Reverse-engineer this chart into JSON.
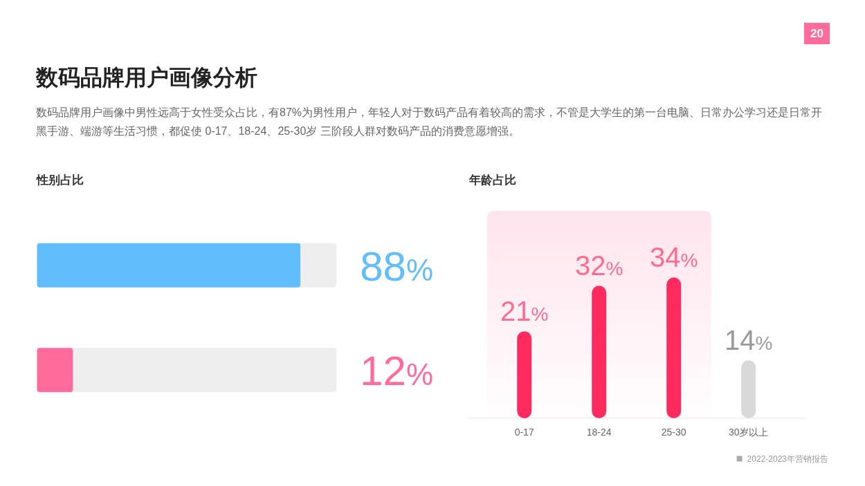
{
  "chart_data": [
    {
      "type": "other",
      "title": "数码品牌用户画像分析",
      "subtitle": "数码品牌用户画像中男性远高于女性受众占比，有87%为男性用户，年轻人对于数码产品有着较高的需求，不管是大学生的第一台电脑、日常办公学习还是日常开黑手游、端游等生活习惯，都促使 0-17、18-24、25-30岁 三阶段人群对数码产品的消费意愿增强。",
      "annotations": [
        "20"
      ]
    },
    {
      "type": "bar",
      "title": "性别占比",
      "orientation": "horizontal",
      "categories": [
        null,
        null
      ],
      "values": [
        88,
        12
      ],
      "colors": [
        "#62bdfd",
        "#ff6b9a"
      ],
      "value_labels": [
        "88%",
        "12%"
      ],
      "xlim": [
        0,
        100
      ]
    },
    {
      "type": "bar",
      "title": "年龄占比",
      "categories": [
        "0-17",
        "18-24",
        "25-30",
        "30岁以上"
      ],
      "values": [
        21,
        32,
        34,
        14
      ],
      "colors": [
        "#ff2b5e",
        "#ff2b5e",
        "#ff2b5e",
        "#d9d9d9"
      ],
      "value_labels": [
        "21%",
        "32%",
        "34%",
        "14%"
      ],
      "tick_labels": "x",
      "bands": [
        {
          "axis": "x",
          "from": "0-17",
          "to": "25-30",
          "color": "#ffe4ec"
        }
      ],
      "annotations": [
        "2022-2023年营销报告"
      ]
    }
  ]
}
